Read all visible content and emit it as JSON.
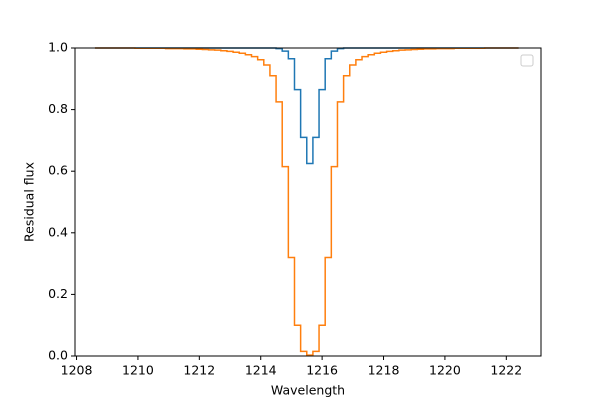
{
  "chart_data": {
    "type": "step",
    "xlabel": "Wavelength",
    "ylabel": "Residual flux",
    "x": [
      1208.6,
      1208.8,
      1209.0,
      1209.2,
      1209.4,
      1209.6,
      1209.8,
      1210.0,
      1210.2,
      1210.4,
      1210.6,
      1210.8,
      1211.0,
      1211.2,
      1211.4,
      1211.6,
      1211.8,
      1212.0,
      1212.2,
      1212.4,
      1212.6,
      1212.8,
      1213.0,
      1213.2,
      1213.4,
      1213.6,
      1213.8,
      1214.0,
      1214.2,
      1214.4,
      1214.6,
      1214.8,
      1215.0,
      1215.2,
      1215.4,
      1215.6,
      1215.8,
      1216.0,
      1216.2,
      1216.4,
      1216.6,
      1216.8,
      1217.0,
      1217.2,
      1217.4,
      1217.6,
      1217.8,
      1218.0,
      1218.2,
      1218.4,
      1218.6,
      1218.8,
      1219.0,
      1219.2,
      1219.4,
      1219.6,
      1219.8,
      1220.0,
      1220.2,
      1220.4,
      1220.6,
      1220.8,
      1221.0,
      1221.2,
      1221.4,
      1221.6,
      1221.8,
      1222.0,
      1222.2,
      1222.4
    ],
    "series": [
      {
        "color": "#1f77b4",
        "values": [
          1,
          1,
          1,
          1,
          1,
          1,
          1,
          1,
          1,
          1,
          1,
          1,
          1,
          1,
          1,
          1,
          1,
          1,
          1,
          1,
          1,
          1,
          1,
          1,
          1,
          1,
          1,
          1,
          1,
          1,
          0.998,
          0.99,
          0.965,
          0.865,
          0.71,
          0.625,
          0.71,
          0.865,
          0.965,
          0.99,
          0.998,
          1,
          1,
          1,
          1,
          1,
          1,
          1,
          1,
          1,
          1,
          1,
          1,
          1,
          1,
          1,
          1,
          1,
          1,
          1,
          1,
          1,
          1,
          1,
          1,
          1,
          1,
          1,
          1,
          1
        ]
      },
      {
        "color": "#ff7f0e",
        "values": [
          1,
          1,
          1,
          1,
          1,
          1,
          1,
          0.999,
          0.999,
          0.999,
          0.999,
          0.999,
          0.998,
          0.998,
          0.998,
          0.997,
          0.997,
          0.996,
          0.995,
          0.994,
          0.993,
          0.991,
          0.989,
          0.986,
          0.983,
          0.978,
          0.972,
          0.962,
          0.945,
          0.91,
          0.825,
          0.615,
          0.32,
          0.1,
          0.015,
          0.003,
          0.015,
          0.1,
          0.32,
          0.615,
          0.825,
          0.91,
          0.945,
          0.962,
          0.972,
          0.978,
          0.983,
          0.986,
          0.989,
          0.991,
          0.993,
          0.994,
          0.995,
          0.996,
          0.997,
          0.997,
          0.998,
          0.998,
          0.998,
          0.999,
          0.999,
          0.999,
          0.999,
          0.999,
          1,
          1,
          1,
          1,
          1,
          1
        ]
      }
    ],
    "xlim": [
      1207.95,
      1223.13
    ],
    "ylim": [
      0,
      1
    ],
    "xticks": [
      1208,
      1210,
      1212,
      1214,
      1216,
      1218,
      1220,
      1222
    ],
    "yticks": [
      {
        "value": 0,
        "label": "0.0"
      },
      0.2,
      0.4,
      0.6,
      0.8,
      {
        "value": 1,
        "label": "1.0"
      }
    ],
    "grid": false
  }
}
